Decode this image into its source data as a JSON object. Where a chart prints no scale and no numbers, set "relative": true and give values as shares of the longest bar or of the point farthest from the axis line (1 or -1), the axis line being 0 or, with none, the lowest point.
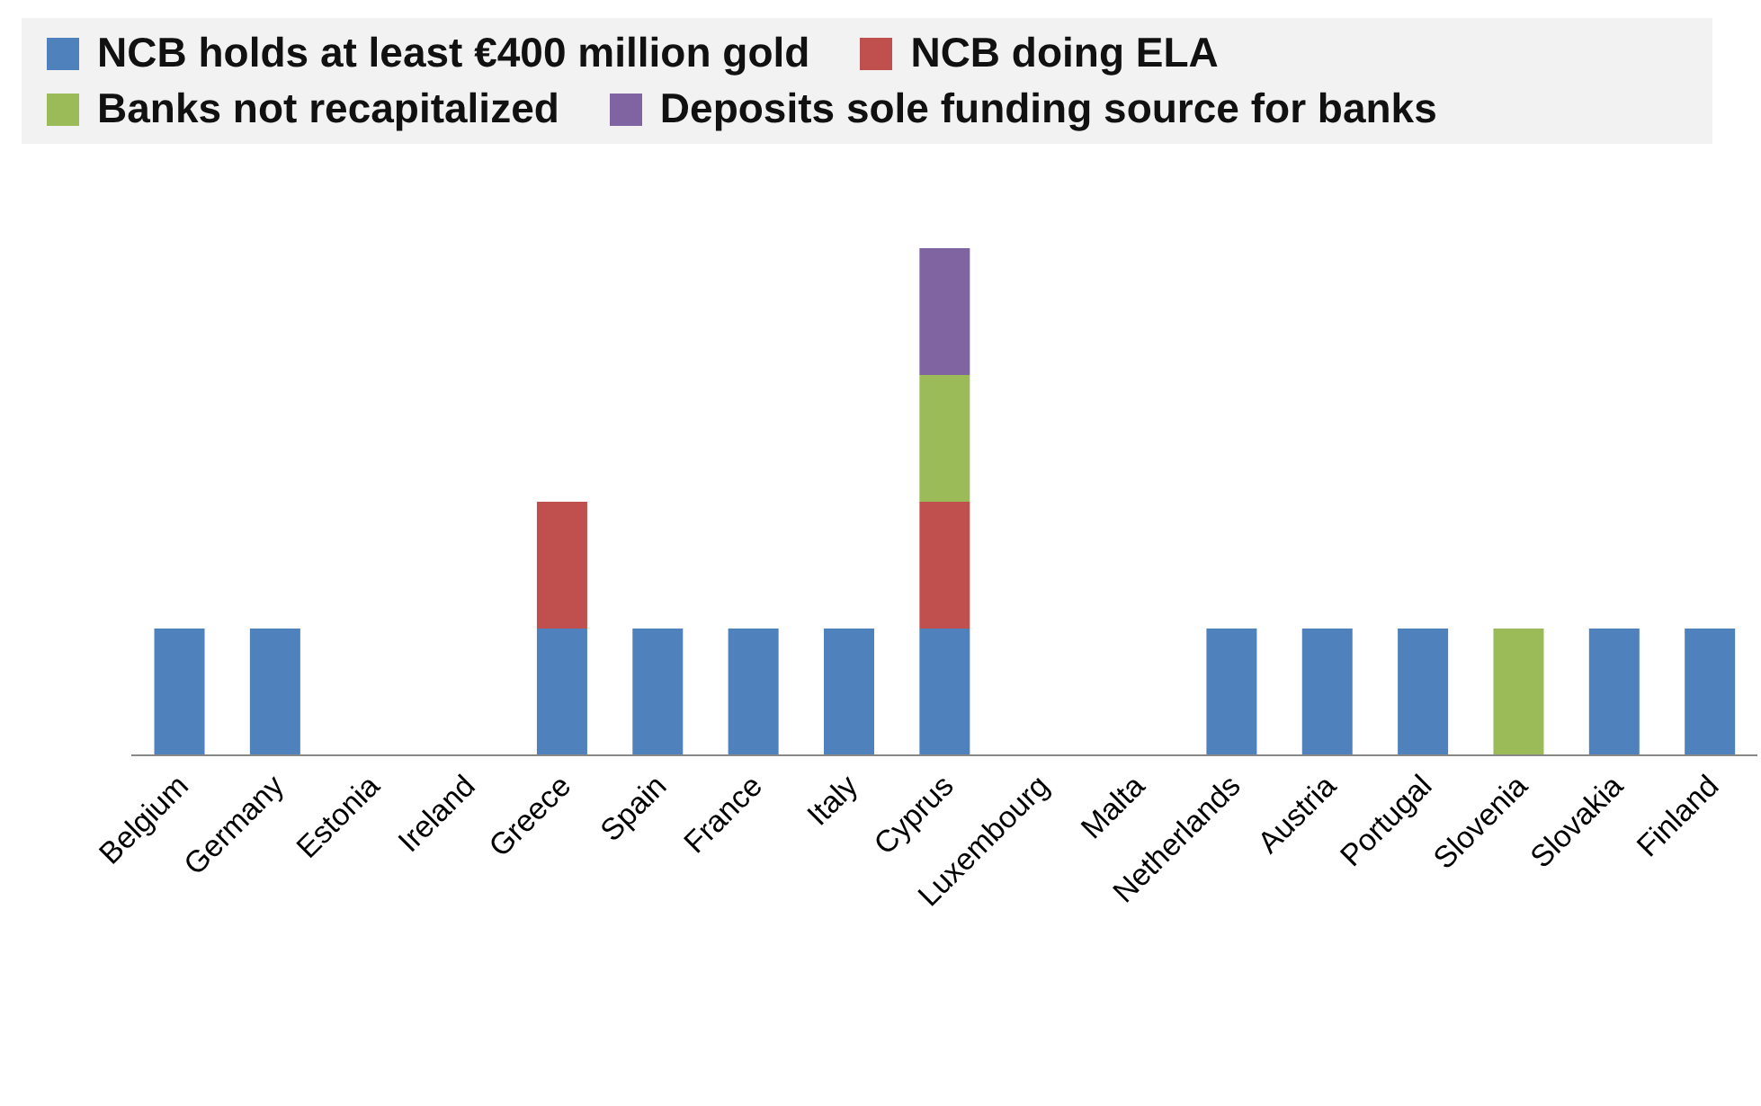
{
  "chart_data": {
    "type": "bar",
    "stacked": true,
    "relative": true,
    "legend": "top",
    "categories": [
      "Belgium",
      "Germany",
      "Estonia",
      "Ireland",
      "Greece",
      "Spain",
      "France",
      "Italy",
      "Cyprus",
      "Luxembourg",
      "Malta",
      "Netherlands",
      "Austria",
      "Portugal",
      "Slovenia",
      "Slovakia",
      "Finland"
    ],
    "series": [
      {
        "name": "NCB holds at least €400 million gold",
        "color": "#4f81bd",
        "values": [
          0.25,
          0.25,
          0,
          0,
          0.25,
          0.25,
          0.25,
          0.25,
          0.25,
          0,
          0,
          0.25,
          0.25,
          0.25,
          0,
          0.25,
          0.25
        ]
      },
      {
        "name": "NCB doing ELA",
        "color": "#c0504d",
        "values": [
          0,
          0,
          0,
          0,
          0.25,
          0,
          0,
          0,
          0.25,
          0,
          0,
          0,
          0,
          0,
          0,
          0,
          0
        ]
      },
      {
        "name": "Banks not recapitalized",
        "color": "#9bbb59",
        "values": [
          0,
          0,
          0,
          0,
          0,
          0,
          0,
          0,
          0.25,
          0,
          0,
          0,
          0,
          0,
          0.25,
          0,
          0
        ]
      },
      {
        "name": "Deposits sole funding source for banks",
        "color": "#8064a2",
        "values": [
          0,
          0,
          0,
          0,
          0,
          0,
          0,
          0,
          0.25,
          0,
          0,
          0,
          0,
          0,
          0,
          0,
          0
        ]
      }
    ]
  }
}
